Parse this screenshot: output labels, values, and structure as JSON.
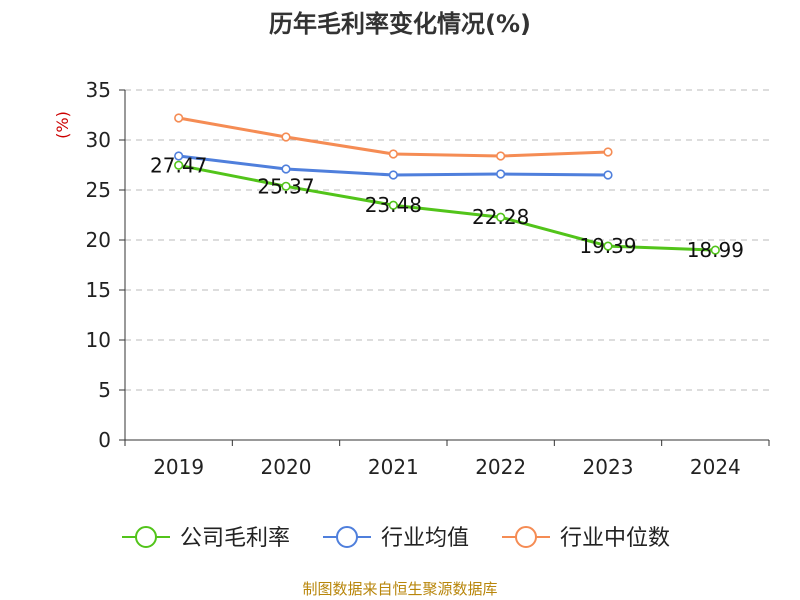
{
  "title": "历年毛利率变化情况(%)",
  "source": "制图数据来自恒生聚源数据库",
  "chart_data": {
    "type": "line",
    "title": "历年毛利率变化情况(%)",
    "ylabel": "(%)",
    "xlabel": "",
    "categories": [
      "2019",
      "2020",
      "2021",
      "2022",
      "2023",
      "2024"
    ],
    "ylim": [
      0,
      35
    ],
    "yticks": [
      0,
      5,
      10,
      15,
      20,
      25,
      30,
      35
    ],
    "grid": "horizontal dashed",
    "legend_position": "bottom",
    "series": [
      {
        "name": "公司毛利率",
        "color": "#52c41a",
        "values": [
          27.47,
          25.37,
          23.48,
          22.28,
          19.39,
          18.99
        ],
        "labels": [
          "27.47",
          "25.37",
          "23.48",
          "22.28",
          "19.39",
          "18.99"
        ]
      },
      {
        "name": "行业均值",
        "color": "#4f7fdc",
        "values": [
          28.4,
          27.1,
          26.5,
          26.6,
          26.5,
          null
        ]
      },
      {
        "name": "行业中位数",
        "color": "#f58c54",
        "values": [
          32.2,
          30.3,
          28.6,
          28.4,
          28.8,
          null
        ]
      }
    ]
  }
}
